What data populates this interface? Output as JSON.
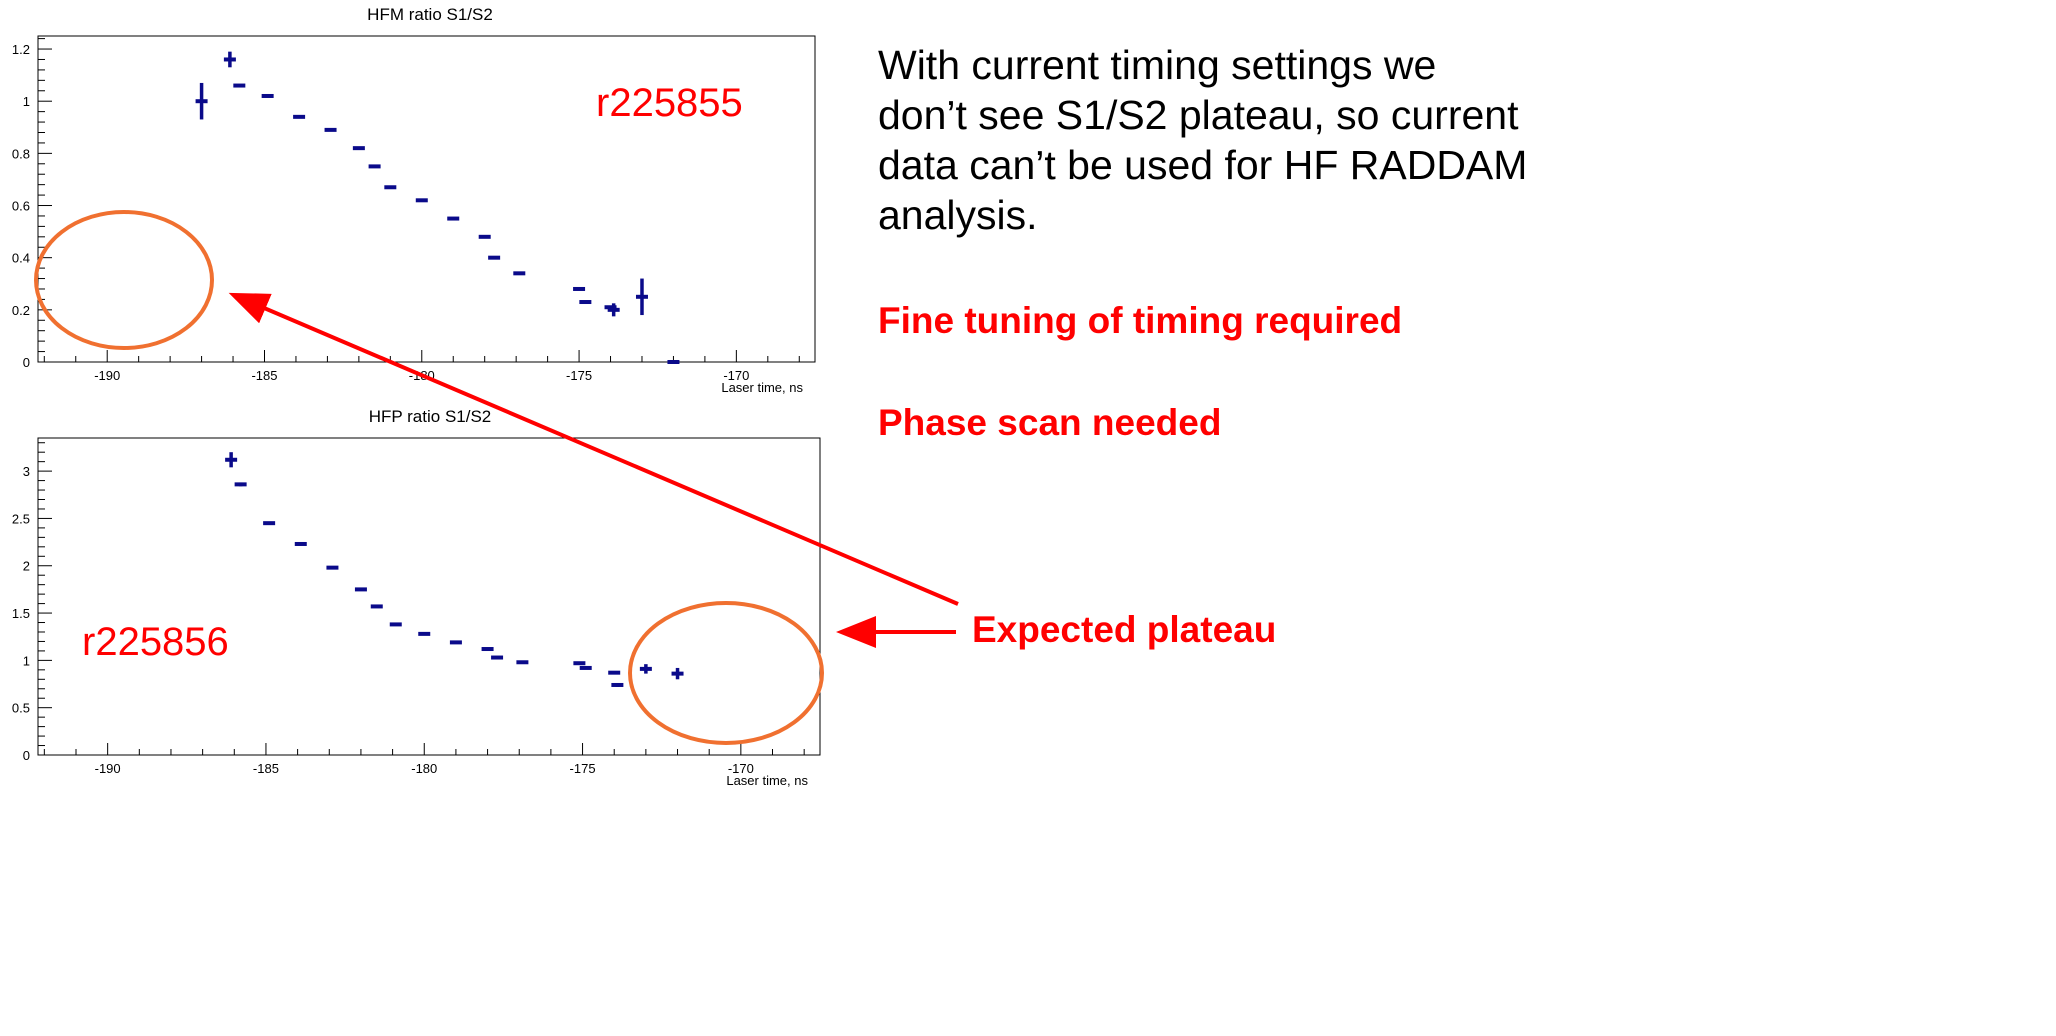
{
  "slide": {
    "note_lines": [
      "With current timing settings we",
      "don’t see S1/S2 plateau, so current",
      "data can’t be used for HF RADDAM",
      "analysis."
    ],
    "fine_tuning": "Fine tuning of timing required",
    "phase_scan": "Phase scan needed",
    "expected_plateau": "Expected plateau",
    "colors": {
      "annotation": "#ff0000",
      "circle": "#f07030",
      "marker": "#0a0a8a"
    }
  },
  "chart_data": [
    {
      "type": "scatter",
      "title": "HFM ratio S1/S2",
      "xlabel": "Laser time, ns",
      "ylabel": "",
      "run_label": "r225855",
      "xlim": [
        -192.2,
        -167.5
      ],
      "ylim": [
        0,
        1.25
      ],
      "xticks": [
        -190,
        -185,
        -180,
        -175,
        -170
      ],
      "xtick_labels": [
        "-190",
        "-185",
        "-180",
        "-175",
        "-170"
      ],
      "yticks": [
        0,
        0.2,
        0.4,
        0.6,
        0.8,
        1,
        1.2
      ],
      "ytick_labels": [
        "0",
        "0.2",
        "0.4",
        "0.6",
        "0.8",
        "1",
        "1.2"
      ],
      "points": [
        {
          "x": -187.0,
          "y": 1.0,
          "yerr": 0.07
        },
        {
          "x": -186.1,
          "y": 1.16,
          "yerr": 0.03
        },
        {
          "x": -185.8,
          "y": 1.06,
          "yerr": 0.005
        },
        {
          "x": -184.9,
          "y": 1.02,
          "yerr": 0.005
        },
        {
          "x": -183.9,
          "y": 0.94,
          "yerr": 0
        },
        {
          "x": -182.9,
          "y": 0.89,
          "yerr": 0
        },
        {
          "x": -182.0,
          "y": 0.82,
          "yerr": 0
        },
        {
          "x": -181.5,
          "y": 0.75,
          "yerr": 0
        },
        {
          "x": -181.0,
          "y": 0.67,
          "yerr": 0
        },
        {
          "x": -180.0,
          "y": 0.62,
          "yerr": 0
        },
        {
          "x": -179.0,
          "y": 0.55,
          "yerr": 0
        },
        {
          "x": -178.0,
          "y": 0.48,
          "yerr": 0
        },
        {
          "x": -177.7,
          "y": 0.4,
          "yerr": 0
        },
        {
          "x": -176.9,
          "y": 0.34,
          "yerr": 0
        },
        {
          "x": -175.0,
          "y": 0.28,
          "yerr": 0
        },
        {
          "x": -174.8,
          "y": 0.23,
          "yerr": 0
        },
        {
          "x": -174.0,
          "y": 0.21,
          "yerr": 0
        },
        {
          "x": -173.9,
          "y": 0.2,
          "yerr": 0.025
        },
        {
          "x": -173.0,
          "y": 0.25,
          "yerr": 0.07
        },
        {
          "x": -172.0,
          "y": 0.0,
          "yerr": 0
        }
      ]
    },
    {
      "type": "scatter",
      "title": "HFP ratio S1/S2",
      "xlabel": "Laser time, ns",
      "ylabel": "",
      "run_label": "r225856",
      "xlim": [
        -192.2,
        -167.5
      ],
      "ylim": [
        0,
        3.35
      ],
      "xticks": [
        -190,
        -185,
        -180,
        -175,
        -170
      ],
      "xtick_labels": [
        "-190",
        "-185",
        "-180",
        "-175",
        "-170"
      ],
      "yticks": [
        0,
        0.5,
        1,
        1.5,
        2,
        2.5,
        3
      ],
      "ytick_labels": [
        "0",
        "0.5",
        "1",
        "1.5",
        "2",
        "2.5",
        "3"
      ],
      "points": [
        {
          "x": -186.1,
          "y": 3.12,
          "yerr": 0.08
        },
        {
          "x": -185.8,
          "y": 2.86,
          "yerr": 0.02
        },
        {
          "x": -184.9,
          "y": 2.45,
          "yerr": 0
        },
        {
          "x": -183.9,
          "y": 2.23,
          "yerr": 0
        },
        {
          "x": -182.9,
          "y": 1.98,
          "yerr": 0
        },
        {
          "x": -182.0,
          "y": 1.75,
          "yerr": 0
        },
        {
          "x": -181.5,
          "y": 1.57,
          "yerr": 0
        },
        {
          "x": -180.9,
          "y": 1.38,
          "yerr": 0
        },
        {
          "x": -180.0,
          "y": 1.28,
          "yerr": 0
        },
        {
          "x": -179.0,
          "y": 1.19,
          "yerr": 0
        },
        {
          "x": -178.0,
          "y": 1.12,
          "yerr": 0
        },
        {
          "x": -177.7,
          "y": 1.03,
          "yerr": 0
        },
        {
          "x": -176.9,
          "y": 0.98,
          "yerr": 0
        },
        {
          "x": -175.1,
          "y": 0.97,
          "yerr": 0
        },
        {
          "x": -174.9,
          "y": 0.92,
          "yerr": 0
        },
        {
          "x": -174.0,
          "y": 0.87,
          "yerr": 0
        },
        {
          "x": -173.9,
          "y": 0.74,
          "yerr": 0.02
        },
        {
          "x": -173.0,
          "y": 0.91,
          "yerr": 0.05
        },
        {
          "x": -172.0,
          "y": 0.86,
          "yerr": 0.06
        }
      ]
    }
  ]
}
